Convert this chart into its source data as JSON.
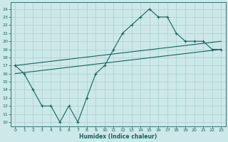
{
  "xlabel": "Humidex (Indice chaleur)",
  "xlim": [
    -0.5,
    23.5
  ],
  "ylim": [
    9.5,
    24.8
  ],
  "xticks": [
    0,
    1,
    2,
    3,
    4,
    5,
    6,
    7,
    8,
    9,
    10,
    11,
    12,
    13,
    14,
    15,
    16,
    17,
    18,
    19,
    20,
    21,
    22,
    23
  ],
  "yticks": [
    10,
    11,
    12,
    13,
    14,
    15,
    16,
    17,
    18,
    19,
    20,
    21,
    22,
    23,
    24
  ],
  "bg_color": "#cce8e8",
  "grid_color": "#aad0d0",
  "line_color": "#1a6060",
  "line1_x": [
    0,
    1,
    2,
    3,
    4,
    5,
    6,
    7,
    8,
    9,
    10,
    11,
    12,
    13,
    14,
    15,
    16,
    17,
    18,
    19,
    20,
    21,
    22,
    23
  ],
  "line1_y": [
    17,
    16,
    14,
    12,
    12,
    10,
    12,
    10,
    13,
    16,
    17,
    19,
    21,
    22,
    23,
    24,
    23,
    23,
    21,
    20,
    20,
    20,
    19,
    19
  ],
  "line2_x": [
    0,
    23
  ],
  "line2_y": [
    17,
    20
  ],
  "line3_x": [
    0,
    23
  ],
  "line3_y": [
    16,
    19
  ],
  "marker_x1": [
    0,
    1,
    2,
    3,
    5,
    6,
    7,
    8,
    9,
    10,
    11,
    12,
    13,
    14,
    15,
    16,
    17,
    18,
    19,
    20,
    21,
    22,
    23
  ],
  "marker_y1": [
    17,
    16,
    14,
    12,
    10,
    12,
    10,
    13,
    16,
    17,
    19,
    21,
    22,
    23,
    24,
    23,
    23,
    21,
    20,
    20,
    20,
    19,
    19
  ]
}
